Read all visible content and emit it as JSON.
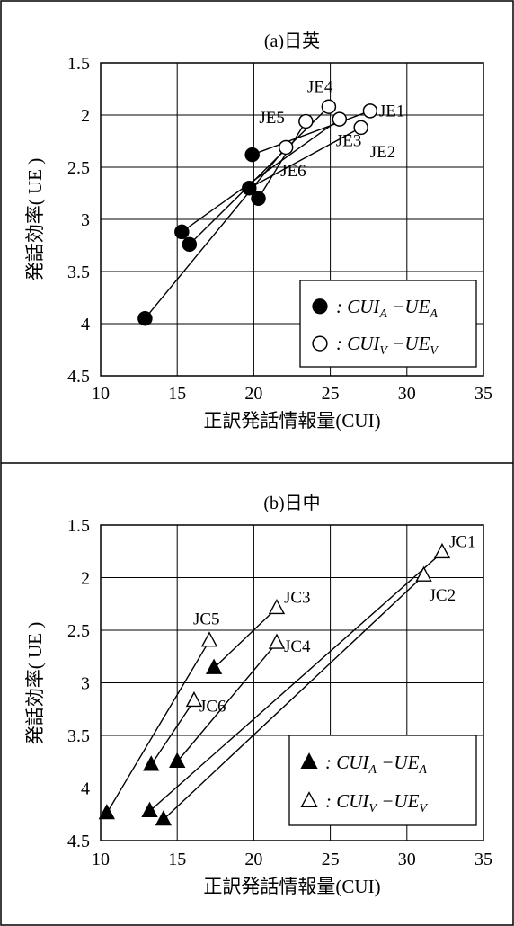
{
  "chart_data": [
    {
      "type": "scatter",
      "title": "(a)日英",
      "xlabel": "正訳発話情報量(CUI)",
      "ylabel": "発話効率( UE )",
      "xlim": [
        10,
        35
      ],
      "ylim": [
        1.5,
        4.5
      ],
      "y_inverted": true,
      "xticks": [
        "10",
        "15",
        "20",
        "25",
        "30",
        "35"
      ],
      "yticks": [
        "1.5",
        "2",
        "2.5",
        "3",
        "3.5",
        "4",
        "4.5"
      ],
      "grid": true,
      "legend_position": "bottom-right",
      "marker_style": "circle",
      "series": [
        {
          "name": ": CUI_A − UE_A",
          "legend_label": ": CUI",
          "sub1": "A",
          "legend_mid": " −UE",
          "sub2": "A",
          "filled": true,
          "points": [
            [
              19.9,
              2.38
            ],
            [
              19.7,
              2.7
            ],
            [
              15.3,
              3.12
            ],
            [
              15.8,
              3.24
            ],
            [
              20.3,
              2.8
            ],
            [
              12.9,
              3.95
            ]
          ]
        },
        {
          "name": ": CUI_V − UE_V",
          "legend_label": ": CUI",
          "sub1": "V",
          "legend_mid": " −UE",
          "sub2": "V",
          "filled": false,
          "points": [
            [
              27.6,
              1.96
            ],
            [
              27.0,
              2.12
            ],
            [
              25.6,
              2.04
            ],
            [
              24.9,
              1.92
            ],
            [
              23.4,
              2.06
            ],
            [
              22.1,
              2.31
            ]
          ]
        }
      ],
      "links": [
        [
          0,
          0
        ],
        [
          1,
          1
        ],
        [
          2,
          2
        ],
        [
          3,
          3
        ],
        [
          4,
          4
        ],
        [
          5,
          5
        ]
      ],
      "labels": [
        {
          "text": "JE1",
          "point": [
            27.6,
            1.96
          ]
        },
        {
          "text": "JE2",
          "point": [
            27.0,
            2.12
          ]
        },
        {
          "text": "JE3",
          "point": [
            25.6,
            2.04
          ]
        },
        {
          "text": "JE4",
          "point": [
            24.9,
            1.92
          ]
        },
        {
          "text": "JE5",
          "point": [
            23.4,
            2.06
          ]
        },
        {
          "text": "JE6",
          "point": [
            22.1,
            2.31
          ]
        }
      ]
    },
    {
      "type": "scatter",
      "title": "(b)日中",
      "xlabel": "正訳発話情報量(CUI)",
      "ylabel": "発話効率( UE )",
      "xlim": [
        10,
        35
      ],
      "ylim": [
        1.5,
        4.5
      ],
      "y_inverted": true,
      "xticks": [
        "10",
        "15",
        "20",
        "25",
        "30",
        "35"
      ],
      "yticks": [
        "1.5",
        "2",
        "2.5",
        "3",
        "3.5",
        "4",
        "4.5"
      ],
      "grid": true,
      "legend_position": "bottom-right",
      "marker_style": "triangle",
      "series": [
        {
          "name": ": CUI_A − UE_A",
          "legend_label": ": CUI",
          "sub1": "A",
          "legend_mid": " −UE",
          "sub2": "A",
          "filled": true,
          "points": [
            [
              13.2,
              4.22
            ],
            [
              14.1,
              4.3
            ],
            [
              17.4,
              2.86
            ],
            [
              15.0,
              3.75
            ],
            [
              13.3,
              3.78
            ],
            [
              10.4,
              4.24
            ]
          ]
        },
        {
          "name": ": CUI_V − UE_V",
          "legend_label": ": CUI",
          "sub1": "V",
          "legend_mid": " −UE",
          "sub2": "V",
          "filled": false,
          "points": [
            [
              32.3,
              1.76
            ],
            [
              31.1,
              1.98
            ],
            [
              21.5,
              2.29
            ],
            [
              21.5,
              2.62
            ],
            [
              16.1,
              3.17
            ],
            [
              17.1,
              2.6
            ]
          ]
        }
      ],
      "links": [
        [
          0,
          0
        ],
        [
          1,
          1
        ],
        [
          2,
          2
        ],
        [
          3,
          3
        ],
        [
          4,
          4
        ],
        [
          5,
          5
        ]
      ],
      "labels": [
        {
          "text": "JC1",
          "point": [
            32.3,
            1.76
          ]
        },
        {
          "text": "JC2",
          "point": [
            31.1,
            1.98
          ]
        },
        {
          "text": "JC3",
          "point": [
            21.5,
            2.29
          ]
        },
        {
          "text": "JC4",
          "point": [
            21.5,
            2.62
          ]
        },
        {
          "text": "JC5",
          "point": [
            17.1,
            2.6
          ]
        },
        {
          "text": "JC6",
          "point": [
            16.1,
            3.17
          ]
        }
      ]
    }
  ]
}
